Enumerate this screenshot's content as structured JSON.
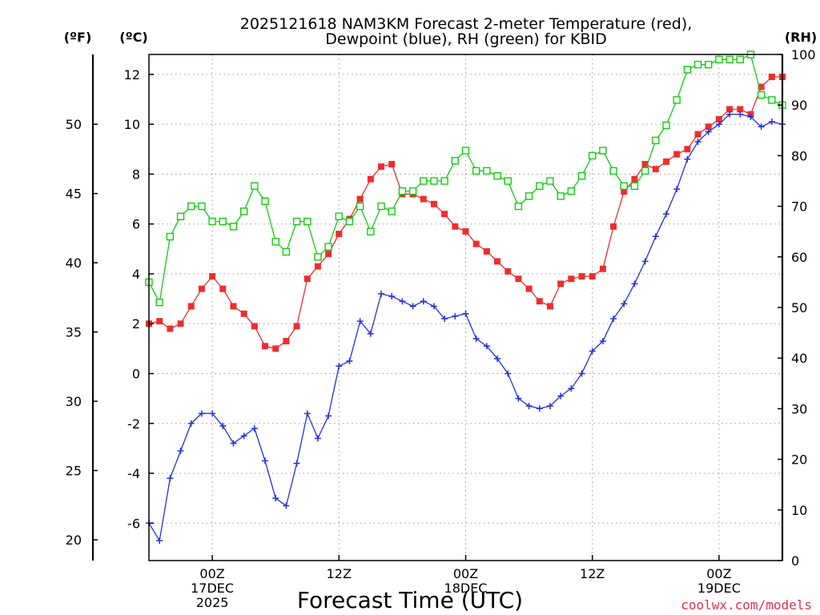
{
  "chart_data": {
    "type": "line",
    "title_line1": "2025121618 NAM3KM Forecast 2-meter Temperature (red),",
    "title_line2": "Dewpoint (blue), RH (green) for KBID",
    "xlabel": "Forecast Time (UTC)",
    "credit": "coolwx.com/models",
    "units": {
      "fahrenheit": "(ºF)",
      "celsius": "(ºC)",
      "rh": "(RH)"
    },
    "forecast_hours": [
      0,
      1,
      2,
      3,
      4,
      5,
      6,
      7,
      8,
      9,
      10,
      11,
      12,
      13,
      14,
      15,
      16,
      17,
      18,
      19,
      20,
      21,
      22,
      23,
      24,
      25,
      26,
      27,
      28,
      29,
      30,
      31,
      32,
      33,
      34,
      35,
      36,
      37,
      38,
      39,
      40,
      41,
      42,
      43,
      44,
      45,
      46,
      47,
      48,
      49,
      50,
      51,
      52,
      53,
      54,
      55,
      56,
      57,
      58,
      59,
      60
    ],
    "x_ticks": [
      {
        "hour": 6,
        "lines": [
          "00Z",
          "17DEC",
          "2025"
        ]
      },
      {
        "hour": 18,
        "lines": [
          "12Z"
        ]
      },
      {
        "hour": 30,
        "lines": [
          "00Z",
          "18DEC"
        ]
      },
      {
        "hour": 42,
        "lines": [
          "12Z"
        ]
      },
      {
        "hour": 54,
        "lines": [
          "00Z",
          "19DEC"
        ]
      }
    ],
    "celsius_axis": {
      "min": -7.5,
      "max": 12.8,
      "ticks": [
        -6,
        -4,
        -2,
        0,
        2,
        4,
        6,
        8,
        10,
        12
      ]
    },
    "fahrenheit_ticks": [
      20,
      25,
      30,
      35,
      40,
      45,
      50
    ],
    "rh_axis": {
      "min": 0,
      "max": 100,
      "ticks": [
        0,
        10,
        20,
        30,
        40,
        50,
        60,
        70,
        80,
        90,
        100
      ]
    },
    "series": [
      {
        "name": "Temperature",
        "unit": "C",
        "color": "#ee2d2d",
        "marker": "filled-square",
        "values": [
          2.0,
          2.1,
          1.8,
          2.0,
          2.7,
          3.4,
          3.9,
          3.4,
          2.7,
          2.4,
          1.9,
          1.1,
          1.0,
          1.3,
          1.9,
          3.8,
          4.3,
          4.8,
          5.6,
          6.2,
          7.0,
          7.8,
          8.3,
          8.4,
          7.2,
          7.2,
          7.0,
          6.8,
          6.4,
          5.9,
          5.7,
          5.2,
          4.9,
          4.5,
          4.1,
          3.8,
          3.4,
          2.9,
          2.7,
          3.6,
          3.8,
          3.9,
          3.9,
          4.2,
          5.9,
          7.3,
          7.8,
          8.4,
          8.2,
          8.5,
          8.8,
          9.0,
          9.6,
          9.9,
          10.2,
          10.6,
          10.6,
          10.4,
          11.5,
          11.9,
          11.9
        ]
      },
      {
        "name": "Dewpoint",
        "unit": "C",
        "color": "#2233dd",
        "marker": "plus",
        "values": [
          -6.0,
          -6.7,
          -4.2,
          -3.1,
          -2.0,
          -1.6,
          -1.6,
          -2.1,
          -2.8,
          -2.5,
          -2.2,
          -3.5,
          -5.0,
          -5.3,
          -3.6,
          -1.6,
          -2.6,
          -1.7,
          0.3,
          0.5,
          2.1,
          1.6,
          3.2,
          3.1,
          2.9,
          2.7,
          2.9,
          2.7,
          2.2,
          2.3,
          2.4,
          1.4,
          1.1,
          0.6,
          0.0,
          -1.0,
          -1.3,
          -1.4,
          -1.3,
          -0.9,
          -0.6,
          0.0,
          0.9,
          1.3,
          2.2,
          2.8,
          3.6,
          4.5,
          5.5,
          6.4,
          7.4,
          8.6,
          9.3,
          9.7,
          10.0,
          10.4,
          10.4,
          10.3,
          9.9,
          10.1,
          10.0
        ]
      },
      {
        "name": "RH",
        "unit": "%",
        "color": "#11cc11",
        "marker": "open-square",
        "values": [
          55,
          51,
          64,
          68,
          70,
          70,
          67,
          67,
          66,
          69,
          74,
          71,
          63,
          61,
          67,
          67,
          60,
          62,
          68,
          67,
          70,
          65,
          70,
          69,
          73,
          73,
          75,
          75,
          75,
          79,
          81,
          77,
          77,
          76,
          75,
          70,
          72,
          74,
          75,
          72,
          73,
          76,
          80,
          81,
          77,
          74,
          74,
          77,
          83,
          86,
          91,
          97,
          98,
          98,
          99,
          99,
          99,
          100,
          92,
          91,
          90
        ]
      }
    ]
  }
}
